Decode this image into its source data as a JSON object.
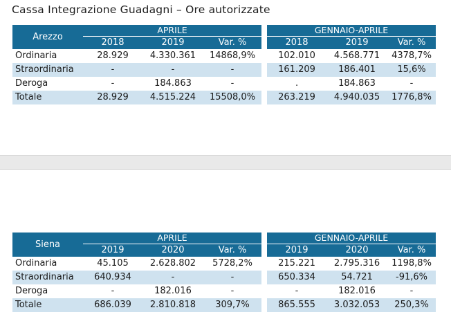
{
  "title": "Cassa Integrazione Guadagni – Ore autorizzate",
  "colors": {
    "header_blue": "#176b96",
    "stripe_blue": "#cfe2ef",
    "divider_gray": "#e9e9e9",
    "text_dark": "#1a1a1a"
  },
  "tables": [
    {
      "region": "Arezzo",
      "groups": [
        {
          "label": "APRILE",
          "columns": [
            "2018",
            "2019",
            "Var. %"
          ]
        },
        {
          "label": "GENNAIO-APRILE",
          "columns": [
            "2018",
            "2019",
            "Var. %"
          ]
        }
      ],
      "rows": [
        {
          "label": "Ordinaria",
          "values": [
            "28.929",
            "4.330.361",
            "14868,9%",
            "102.010",
            "4.568.771",
            "4378,7%"
          ]
        },
        {
          "label": "Straordinaria",
          "values": [
            "-",
            "-",
            "-",
            "161.209",
            "186.401",
            "15,6%"
          ]
        },
        {
          "label": "Deroga",
          "values": [
            "-",
            "184.863",
            "-",
            ".",
            "184.863",
            "-"
          ]
        },
        {
          "label": "Totale",
          "values": [
            "28.929",
            "4.515.224",
            "15508,0%",
            "263.219",
            "4.940.035",
            "1776,8%"
          ]
        }
      ]
    },
    {
      "region": "Siena",
      "groups": [
        {
          "label": "APRILE",
          "columns": [
            "2019",
            "2020",
            "Var. %"
          ]
        },
        {
          "label": "GENNAIO-APRILE",
          "columns": [
            "2019",
            "2020",
            "Var. %"
          ]
        }
      ],
      "rows": [
        {
          "label": "Ordinaria",
          "values": [
            "45.105",
            "2.628.802",
            "5728,2%",
            "215.221",
            "2.795.316",
            "1198,8%"
          ]
        },
        {
          "label": "Straordinaria",
          "values": [
            "640.934",
            "-",
            "-",
            "650.334",
            "54.721",
            "-91,6%"
          ]
        },
        {
          "label": "Deroga",
          "values": [
            "-",
            "182.016",
            "-",
            "-",
            "182.016",
            "-"
          ]
        },
        {
          "label": "Totale",
          "values": [
            "686.039",
            "2.810.818",
            "309,7%",
            "865.555",
            "3.032.053",
            "250,3%"
          ]
        }
      ]
    }
  ]
}
